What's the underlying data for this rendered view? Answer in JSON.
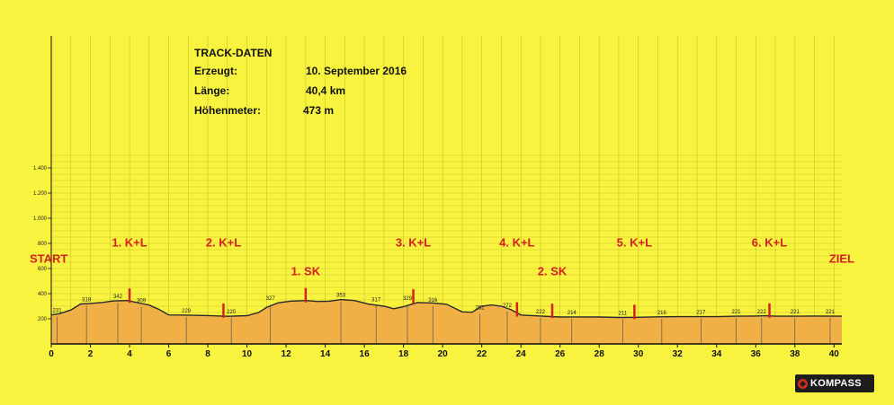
{
  "track_info": {
    "title": "TRACK-DATEN",
    "rows": [
      {
        "label": "Erzeugt:",
        "value": "10. September 2016"
      },
      {
        "label": "Länge:",
        "value": "40,4 km"
      },
      {
        "label": "Höhenmeter:",
        "value": "473 m"
      }
    ]
  },
  "chart_data": {
    "type": "area",
    "title": "",
    "xlabel": "",
    "ylabel": "",
    "xlim": [
      0,
      40.4
    ],
    "ylim": [
      0,
      1500
    ],
    "x_ticks": [
      0,
      2,
      4,
      6,
      8,
      10,
      12,
      14,
      16,
      18,
      20,
      22,
      24,
      26,
      28,
      30,
      32,
      34,
      36,
      38,
      40
    ],
    "y_ticks": [
      200,
      400,
      600,
      800,
      1000,
      1200,
      1400
    ],
    "y_tick_labels": [
      "200",
      "400",
      "600",
      "800",
      "1.000",
      "1.200",
      "1.400"
    ],
    "grid": true,
    "series": [
      {
        "x": [
          0,
          0.4,
          1.0,
          1.5,
          2.0,
          2.6,
          3.2,
          3.9,
          4.5,
          5.0,
          5.5,
          6.0,
          7.0,
          8.0,
          9.0,
          10.0,
          10.6,
          11.0,
          11.6,
          12.2,
          13.0,
          13.6,
          14.2,
          14.8,
          15.5,
          16.2,
          17.0,
          17.5,
          18.0,
          18.7,
          19.5,
          20.2,
          21.0,
          21.5,
          22.0,
          22.5,
          23.0,
          23.5,
          24.0,
          25.0,
          26.0,
          27.0,
          28.0,
          29.0,
          30.0,
          31.0,
          32.0,
          33.0,
          34.0,
          35.0,
          36.0,
          36.5,
          37.0,
          38.0,
          39.0,
          40.0,
          40.4
        ],
        "y": [
          231,
          240,
          270,
          318,
          322,
          330,
          342,
          345,
          325,
          309,
          275,
          231,
          229,
          226,
          220,
          225,
          250,
          290,
          327,
          340,
          345,
          338,
          340,
          353,
          345,
          317,
          300,
          280,
          296,
          329,
          326,
          316,
          255,
          252,
          300,
          310,
          300,
          272,
          230,
          222,
          214,
          215,
          214,
          211,
          212,
          216,
          217,
          217,
          217,
          221,
          222,
          224,
          221,
          221,
          222,
          221,
          221
        ]
      }
    ],
    "point_labels": [
      {
        "x": 0.3,
        "y": 231,
        "text": "231"
      },
      {
        "x": 1.8,
        "y": 318,
        "text": "318"
      },
      {
        "x": 3.4,
        "y": 342,
        "text": "342"
      },
      {
        "x": 4.6,
        "y": 309,
        "text": "309"
      },
      {
        "x": 6.9,
        "y": 229,
        "text": "229"
      },
      {
        "x": 9.2,
        "y": 220,
        "text": "220"
      },
      {
        "x": 11.2,
        "y": 327,
        "text": "327"
      },
      {
        "x": 14.8,
        "y": 353,
        "text": "353"
      },
      {
        "x": 16.6,
        "y": 317,
        "text": "317"
      },
      {
        "x": 18.2,
        "y": 329,
        "text": "329"
      },
      {
        "x": 19.5,
        "y": 316,
        "text": "316"
      },
      {
        "x": 21.9,
        "y": 252,
        "text": "252"
      },
      {
        "x": 23.3,
        "y": 272,
        "text": "272"
      },
      {
        "x": 25.0,
        "y": 222,
        "text": "222"
      },
      {
        "x": 26.6,
        "y": 214,
        "text": "214"
      },
      {
        "x": 29.2,
        "y": 211,
        "text": "211"
      },
      {
        "x": 31.2,
        "y": 216,
        "text": "216"
      },
      {
        "x": 33.2,
        "y": 217,
        "text": "217"
      },
      {
        "x": 35.0,
        "y": 221,
        "text": "221"
      },
      {
        "x": 36.3,
        "y": 222,
        "text": "222"
      },
      {
        "x": 38.0,
        "y": 221,
        "text": "221"
      },
      {
        "x": 39.8,
        "y": 221,
        "text": "221"
      }
    ],
    "markers": [
      {
        "x": 4.0,
        "y": 342
      },
      {
        "x": 8.8,
        "y": 222
      },
      {
        "x": 13.0,
        "y": 345
      },
      {
        "x": 18.5,
        "y": 335
      },
      {
        "x": 23.8,
        "y": 232
      },
      {
        "x": 25.6,
        "y": 220
      },
      {
        "x": 29.8,
        "y": 212
      },
      {
        "x": 36.7,
        "y": 223
      }
    ],
    "annotations": [
      {
        "text": "START",
        "x": -0.8,
        "y": 645
      },
      {
        "text": "1. K+L",
        "x": 4.0,
        "y": 775
      },
      {
        "text": "2. K+L",
        "x": 8.8,
        "y": 775
      },
      {
        "text": "1. SK",
        "x": 13.0,
        "y": 545
      },
      {
        "text": "3. K+L",
        "x": 18.5,
        "y": 775
      },
      {
        "text": "4. K+L",
        "x": 23.8,
        "y": 775
      },
      {
        "text": "2. SK",
        "x": 25.6,
        "y": 545
      },
      {
        "text": "5. K+L",
        "x": 29.8,
        "y": 775
      },
      {
        "text": "6. K+L",
        "x": 36.7,
        "y": 775
      },
      {
        "text": "ZIEL",
        "x": 40.4,
        "y": 645
      }
    ]
  },
  "branding": {
    "logo_text": "KOMPASS"
  },
  "colors": {
    "background": "#f7f33e",
    "fill": "#f0b046",
    "line": "#2a2a2a",
    "annotation": "#d62020",
    "grid": "#c9c430"
  }
}
